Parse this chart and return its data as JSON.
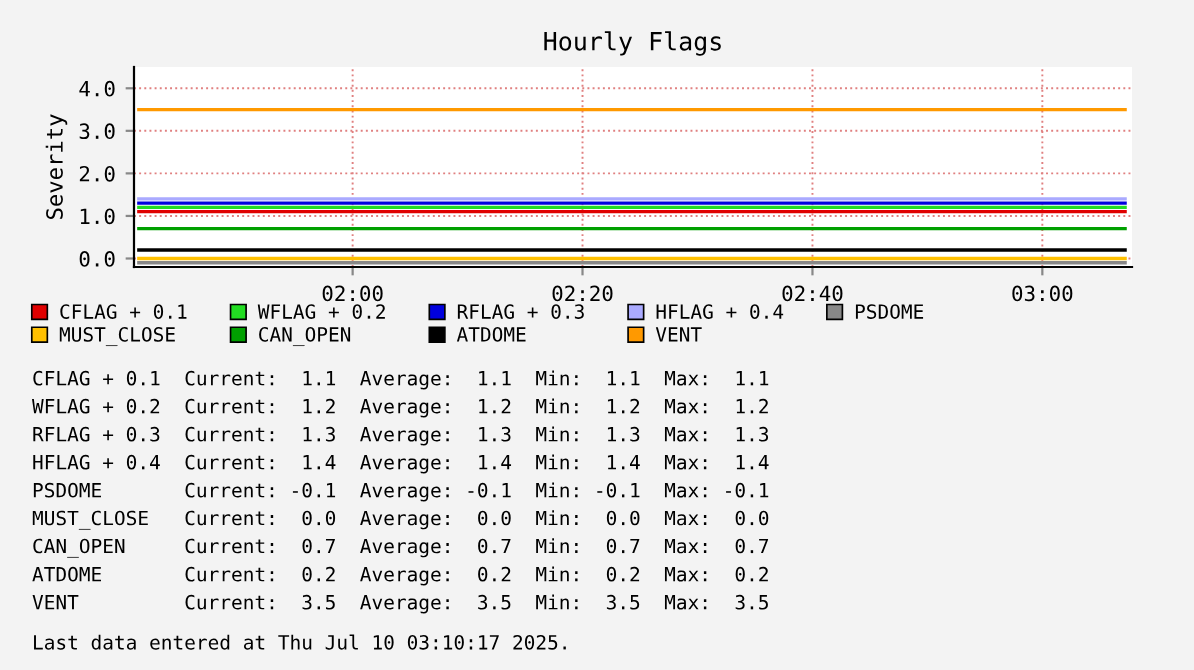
{
  "chart_data": {
    "type": "line",
    "title": "Hourly Flags",
    "ylabel": "Severity",
    "xlim": [
      1.683,
      3.13
    ],
    "ylim": [
      -0.2,
      4.5
    ],
    "xticks": [
      {
        "value": 2,
        "label": "02:00"
      },
      {
        "value": 2.3333,
        "label": "02:20"
      },
      {
        "value": 2.6667,
        "label": "02:40"
      },
      {
        "value": 3,
        "label": "03:00"
      }
    ],
    "yticks": [
      {
        "value": 0,
        "label": "0.0"
      },
      {
        "value": 1,
        "label": "1.0"
      },
      {
        "value": 2,
        "label": "2.0"
      },
      {
        "value": 3,
        "label": "3.0"
      },
      {
        "value": 4,
        "label": "4.0"
      }
    ],
    "grid": true,
    "legend": "bottom",
    "line_style": "solid",
    "marker": "none",
    "x": [
      1.69,
      3.12
    ],
    "series": [
      {
        "name": "CFLAG + 0.1",
        "color": "#e00000",
        "values": [
          1.1,
          1.1
        ]
      },
      {
        "name": "WFLAG + 0.2",
        "color": "#22dd22",
        "values": [
          1.2,
          1.2
        ]
      },
      {
        "name": "RFLAG + 0.3",
        "color": "#0000dd",
        "values": [
          1.3,
          1.3
        ]
      },
      {
        "name": "HFLAG + 0.4",
        "color": "#aaaaff",
        "values": [
          1.4,
          1.4
        ]
      },
      {
        "name": "PSDOME",
        "color": "#888888",
        "values": [
          -0.1,
          -0.1
        ]
      },
      {
        "name": "MUST_CLOSE",
        "color": "#ffc000",
        "values": [
          0.0,
          0.0
        ]
      },
      {
        "name": "CAN_OPEN",
        "color": "#00a000",
        "values": [
          0.7,
          0.7
        ]
      },
      {
        "name": "ATDOME",
        "color": "#000000",
        "values": [
          0.2,
          0.2
        ]
      },
      {
        "name": "VENT",
        "color": "#ff9900",
        "values": [
          3.5,
          3.5
        ]
      }
    ],
    "annotations": [
      "CFLAG + 0.1  Current:  1.1  Average:  1.1  Min:  1.1  Max:  1.1",
      "WFLAG + 0.2  Current:  1.2  Average:  1.2  Min:  1.2  Max:  1.2",
      "RFLAG + 0.3  Current:  1.3  Average:  1.3  Min:  1.3  Max:  1.3",
      "HFLAG + 0.4  Current:  1.4  Average:  1.4  Min:  1.4  Max:  1.4",
      "PSDOME       Current: -0.1  Average: -0.1  Min: -0.1  Max: -0.1",
      "MUST_CLOSE   Current:  0.0  Average:  0.0  Min:  0.0  Max:  0.0",
      "CAN_OPEN     Current:  0.7  Average:  0.7  Min:  0.7  Max:  0.7",
      "ATDOME       Current:  0.2  Average:  0.2  Min:  0.2  Max:  0.2",
      "VENT         Current:  3.5  Average:  3.5  Min:  3.5  Max:  3.5",
      "Last data entered at Thu Jul 10 03:10:17 2025."
    ]
  }
}
